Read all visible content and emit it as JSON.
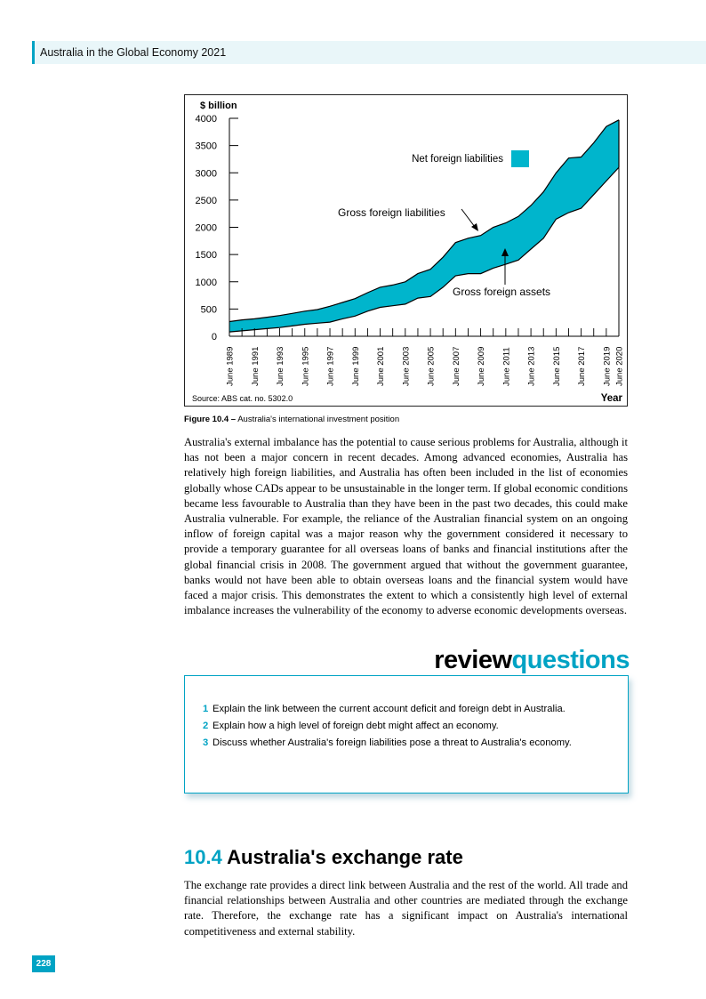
{
  "header": {
    "running_title": "Australia in the Global Economy 2021"
  },
  "figure": {
    "caption_label": "Figure 10.4 –",
    "caption_text": "Australia's international investment position",
    "source": "Source: ABS cat. no. 5302.0"
  },
  "chart_data": {
    "type": "area",
    "title": "",
    "ylabel": "$ billion",
    "xlabel": "Year",
    "ylim": [
      0,
      4000
    ],
    "yticks": [
      0,
      500,
      1000,
      1500,
      2000,
      2500,
      3000,
      3500,
      4000
    ],
    "x_tick_labels": [
      "June 1989",
      "June 1991",
      "June 1993",
      "June 1995",
      "June 1997",
      "June 1999",
      "June 2001",
      "June 2003",
      "June 2005",
      "June 2007",
      "June 2009",
      "June 2011",
      "June 2013",
      "June 2015",
      "June 2017",
      "June 2019",
      "June 2020"
    ],
    "x": [
      1989,
      1990,
      1991,
      1992,
      1993,
      1994,
      1995,
      1996,
      1997,
      1998,
      1999,
      2000,
      2001,
      2002,
      2003,
      2004,
      2005,
      2006,
      2007,
      2008,
      2009,
      2010,
      2011,
      2012,
      2013,
      2014,
      2015,
      2016,
      2017,
      2018,
      2019,
      2020
    ],
    "series": [
      {
        "name": "Gross foreign liabilities",
        "values": [
          270,
          300,
          320,
          350,
          380,
          420,
          460,
          490,
          550,
          620,
          690,
          800,
          900,
          940,
          1000,
          1150,
          1230,
          1450,
          1720,
          1800,
          1850,
          2000,
          2080,
          2200,
          2400,
          2650,
          3000,
          3270,
          3290,
          3550,
          3850,
          3970
        ]
      },
      {
        "name": "Gross foreign assets",
        "values": [
          80,
          100,
          120,
          140,
          160,
          190,
          220,
          240,
          260,
          320,
          370,
          460,
          530,
          560,
          590,
          700,
          730,
          900,
          1110,
          1150,
          1150,
          1250,
          1320,
          1400,
          1600,
          1800,
          2150,
          2270,
          2350,
          2600,
          2850,
          3100
        ]
      }
    ],
    "area_label": "Net foreign liabilities",
    "colors": {
      "net_fill": "#00b5cc",
      "line": "#000000"
    },
    "annotations": [
      "Gross foreign liabilities",
      "Gross foreign assets"
    ],
    "legend_placement": "top-right",
    "grid": false
  },
  "body": {
    "paragraph1": "Australia's external imbalance has the potential to cause serious problems for Australia, although it has not been a major concern in recent decades. Among advanced economies, Australia has relatively high foreign liabilities, and Australia has often been included in the list of economies globally whose CADs appear to be unsustainable in the longer term. If global economic conditions became less favourable to Australia than they have been in the past two decades, this could make Australia vulnerable. For example, the reliance of the Australian financial system on an ongoing inflow of foreign capital was a major reason why the government considered it necessary to provide a temporary guarantee for all overseas loans of banks and financial institutions after the global financial crisis in 2008. The government argued that without the government guarantee, banks would not have been able to obtain overseas loans and the financial system would have faced a major crisis. This demonstrates the extent to which a consistently high level of external imbalance increases the vulnerability of the economy to adverse economic developments overseas.",
    "paragraph2": "The exchange rate provides a direct link between Australia and the rest of the world. All trade and financial relationships between Australia and other countries are mediated through the exchange rate. Therefore, the exchange rate has a significant impact on Australia's international competitiveness and external stability."
  },
  "review": {
    "title_part1": "review",
    "title_part2": "questions",
    "questions": [
      {
        "num": "1",
        "text": "Explain the link between the current account deficit and foreign debt in Australia."
      },
      {
        "num": "2",
        "text": "Explain how a high level of foreign debt might affect an economy."
      },
      {
        "num": "3",
        "text": "Discuss whether Australia's foreign liabilities pose a threat to Australia's economy."
      }
    ]
  },
  "section": {
    "number": "10.4",
    "title": "Australia's exchange rate"
  },
  "page_number": "228"
}
